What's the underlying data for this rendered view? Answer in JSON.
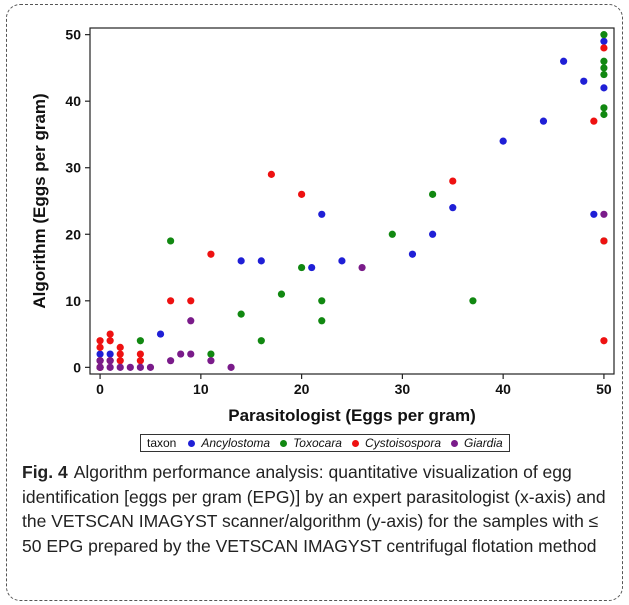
{
  "chart_data": {
    "type": "scatter",
    "title": "",
    "xlabel": "Parasitologist (Eggs per gram)",
    "ylabel": "Algorithm (Eggs per gram)",
    "xlim": [
      -1,
      51
    ],
    "ylim": [
      -1,
      51
    ],
    "xticks": [
      0,
      10,
      20,
      30,
      40,
      50
    ],
    "yticks": [
      0,
      10,
      20,
      30,
      40,
      50
    ],
    "grid": false,
    "legend_title": "taxon",
    "legend_position": "bottom",
    "series": [
      {
        "name": "Ancylostoma",
        "color": "#1f1fd6",
        "points": [
          [
            0,
            0
          ],
          [
            0,
            1
          ],
          [
            0,
            2
          ],
          [
            1,
            2
          ],
          [
            6,
            5
          ],
          [
            14,
            16
          ],
          [
            16,
            16
          ],
          [
            21,
            15
          ],
          [
            22,
            23
          ],
          [
            24,
            16
          ],
          [
            31,
            17
          ],
          [
            33,
            20
          ],
          [
            35,
            24
          ],
          [
            40,
            34
          ],
          [
            44,
            37
          ],
          [
            46,
            46
          ],
          [
            48,
            43
          ],
          [
            49,
            23
          ],
          [
            50,
            42
          ],
          [
            50,
            49
          ]
        ]
      },
      {
        "name": "Toxocara",
        "color": "#118811",
        "points": [
          [
            0,
            0
          ],
          [
            4,
            4
          ],
          [
            7,
            19
          ],
          [
            11,
            2
          ],
          [
            14,
            8
          ],
          [
            16,
            4
          ],
          [
            18,
            11
          ],
          [
            20,
            15
          ],
          [
            22,
            7
          ],
          [
            22,
            10
          ],
          [
            29,
            20
          ],
          [
            33,
            26
          ],
          [
            37,
            10
          ],
          [
            50,
            19
          ],
          [
            50,
            38
          ],
          [
            50,
            39
          ],
          [
            50,
            44
          ],
          [
            50,
            45
          ],
          [
            50,
            46
          ],
          [
            50,
            50
          ]
        ]
      },
      {
        "name": "Cystoisospora",
        "color": "#ee1111",
        "points": [
          [
            0,
            0
          ],
          [
            0,
            1
          ],
          [
            0,
            3
          ],
          [
            0,
            4
          ],
          [
            1,
            1
          ],
          [
            1,
            4
          ],
          [
            1,
            5
          ],
          [
            2,
            1
          ],
          [
            2,
            2
          ],
          [
            2,
            3
          ],
          [
            4,
            1
          ],
          [
            4,
            2
          ],
          [
            7,
            10
          ],
          [
            9,
            10
          ],
          [
            11,
            17
          ],
          [
            17,
            29
          ],
          [
            20,
            26
          ],
          [
            35,
            28
          ],
          [
            49,
            37
          ],
          [
            50,
            4
          ],
          [
            50,
            19
          ],
          [
            50,
            48
          ]
        ]
      },
      {
        "name": "Giardia",
        "color": "#7a1b8a",
        "points": [
          [
            0,
            0
          ],
          [
            0,
            1
          ],
          [
            1,
            0
          ],
          [
            1,
            1
          ],
          [
            2,
            0
          ],
          [
            3,
            0
          ],
          [
            4,
            0
          ],
          [
            5,
            0
          ],
          [
            7,
            1
          ],
          [
            8,
            2
          ],
          [
            9,
            2
          ],
          [
            9,
            7
          ],
          [
            11,
            1
          ],
          [
            13,
            0
          ],
          [
            26,
            15
          ],
          [
            50,
            23
          ]
        ]
      }
    ]
  },
  "caption": {
    "label": "Fig. 4",
    "text": "Algorithm performance analysis: quantitative visualization of egg identification [eggs per gram (EPG)] by an expert parasitologist (x-axis) and the VETSCAN IMAGYST scanner/algorithm (y-axis) for the samples with ≤ 50 EPG prepared by the VETSCAN IMAGYST centrifugal flotation method"
  }
}
